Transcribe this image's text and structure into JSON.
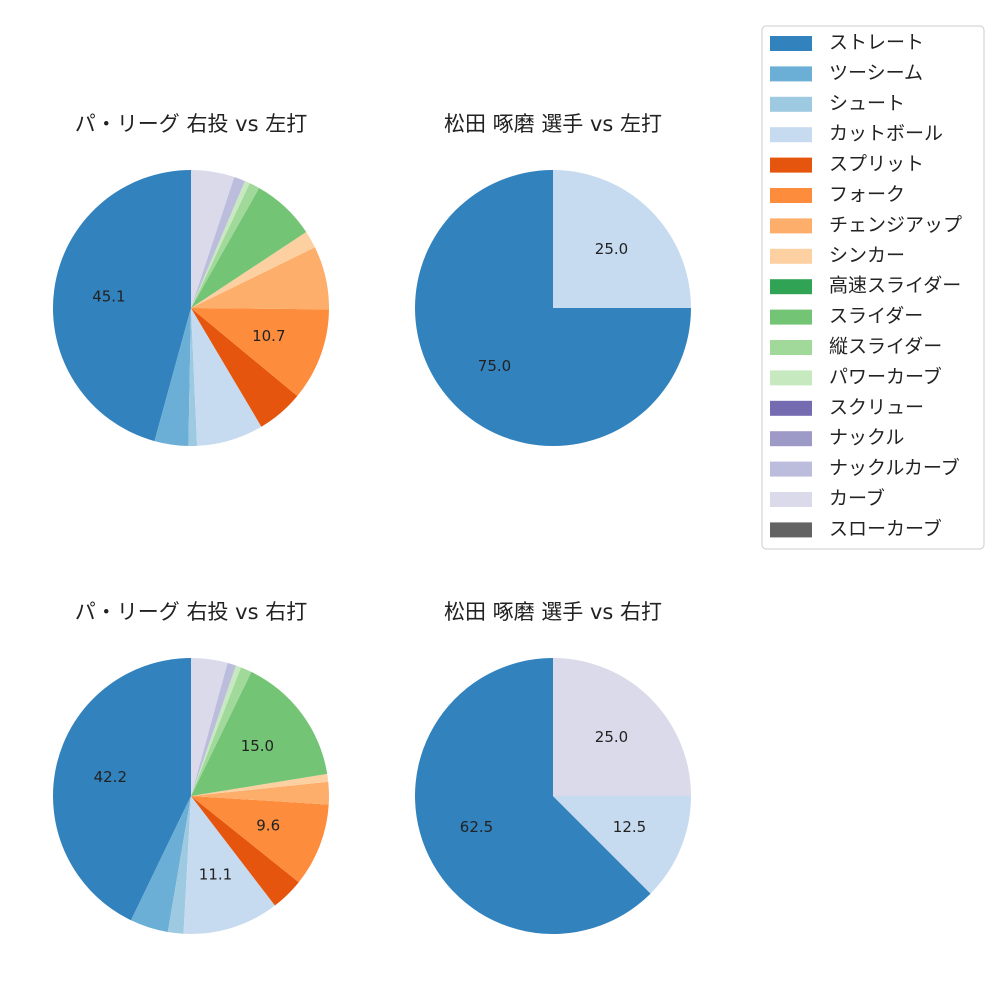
{
  "pitch_colors": {
    "ストレート": "#3182bd",
    "ツーシーム": "#6baed6",
    "シュート": "#9ecae1",
    "カットボール": "#c6dbef",
    "スプリット": "#e6550d",
    "フォーク": "#fd8d3c",
    "チェンジアップ": "#fdae6b",
    "シンカー": "#fdd0a2",
    "高速スライダー": "#31a354",
    "スライダー": "#74c476",
    "縦スライダー": "#a1d99b",
    "パワーカーブ": "#c7e9c0",
    "スクリュー": "#756bb1",
    "ナックル": "#9e9ac8",
    "ナックルカーブ": "#bcbddc",
    "カーブ": "#dadaeb",
    "スローカーブ": "#636363"
  },
  "legend": {
    "items": [
      "ストレート",
      "ツーシーム",
      "シュート",
      "カットボール",
      "スプリット",
      "フォーク",
      "チェンジアップ",
      "シンカー",
      "高速スライダー",
      "スライダー",
      "縦スライダー",
      "パワーカーブ",
      "スクリュー",
      "ナックル",
      "ナックルカーブ",
      "カーブ",
      "スローカーブ"
    ]
  },
  "chart_data": [
    {
      "type": "pie",
      "title": "パ・リーグ 右投 vs 左打",
      "slices": [
        {
          "label": "ストレート",
          "value": 45.1,
          "text": "45.1"
        },
        {
          "label": "ツーシーム",
          "value": 3.9,
          "text": ""
        },
        {
          "label": "シュート",
          "value": 1.0,
          "text": ""
        },
        {
          "label": "カットボール",
          "value": 7.7,
          "text": ""
        },
        {
          "label": "スプリット",
          "value": 5.4,
          "text": ""
        },
        {
          "label": "フォーク",
          "value": 10.7,
          "text": "10.7"
        },
        {
          "label": "チェンジアップ",
          "value": 7.3,
          "text": ""
        },
        {
          "label": "シンカー",
          "value": 2.0,
          "text": ""
        },
        {
          "label": "スライダー",
          "value": 7.4,
          "text": ""
        },
        {
          "label": "縦スライダー",
          "value": 1.2,
          "text": ""
        },
        {
          "label": "パワーカーブ",
          "value": 0.6,
          "text": ""
        },
        {
          "label": "ナックルカーブ",
          "value": 1.3,
          "text": ""
        },
        {
          "label": "カーブ",
          "value": 5.0,
          "text": ""
        }
      ]
    },
    {
      "type": "pie",
      "title": "松田 啄磨 選手 vs 左打",
      "slices": [
        {
          "label": "ストレート",
          "value": 75.0,
          "text": "75.0"
        },
        {
          "label": "カットボール",
          "value": 25.0,
          "text": "25.0"
        }
      ]
    },
    {
      "type": "pie",
      "title": "パ・リーグ 右投 vs 右打",
      "slices": [
        {
          "label": "ストレート",
          "value": 42.2,
          "text": "42.2"
        },
        {
          "label": "ツーシーム",
          "value": 4.4,
          "text": ""
        },
        {
          "label": "シュート",
          "value": 1.8,
          "text": ""
        },
        {
          "label": "カットボール",
          "value": 11.1,
          "text": "11.1"
        },
        {
          "label": "スプリット",
          "value": 3.8,
          "text": ""
        },
        {
          "label": "フォーク",
          "value": 9.6,
          "text": "9.6"
        },
        {
          "label": "チェンジアップ",
          "value": 2.6,
          "text": ""
        },
        {
          "label": "シンカー",
          "value": 0.9,
          "text": ""
        },
        {
          "label": "スライダー",
          "value": 15.0,
          "text": "15.0"
        },
        {
          "label": "縦スライダー",
          "value": 1.3,
          "text": ""
        },
        {
          "label": "パワーカーブ",
          "value": 0.6,
          "text": ""
        },
        {
          "label": "ナックルカーブ",
          "value": 1.0,
          "text": ""
        },
        {
          "label": "カーブ",
          "value": 4.2,
          "text": ""
        }
      ]
    },
    {
      "type": "pie",
      "title": "松田 啄磨 選手 vs 右打",
      "slices": [
        {
          "label": "ストレート",
          "value": 62.5,
          "text": "62.5"
        },
        {
          "label": "カットボール",
          "value": 12.5,
          "text": "12.5"
        },
        {
          "label": "カーブ",
          "value": 25.0,
          "text": "25.0"
        }
      ]
    }
  ]
}
